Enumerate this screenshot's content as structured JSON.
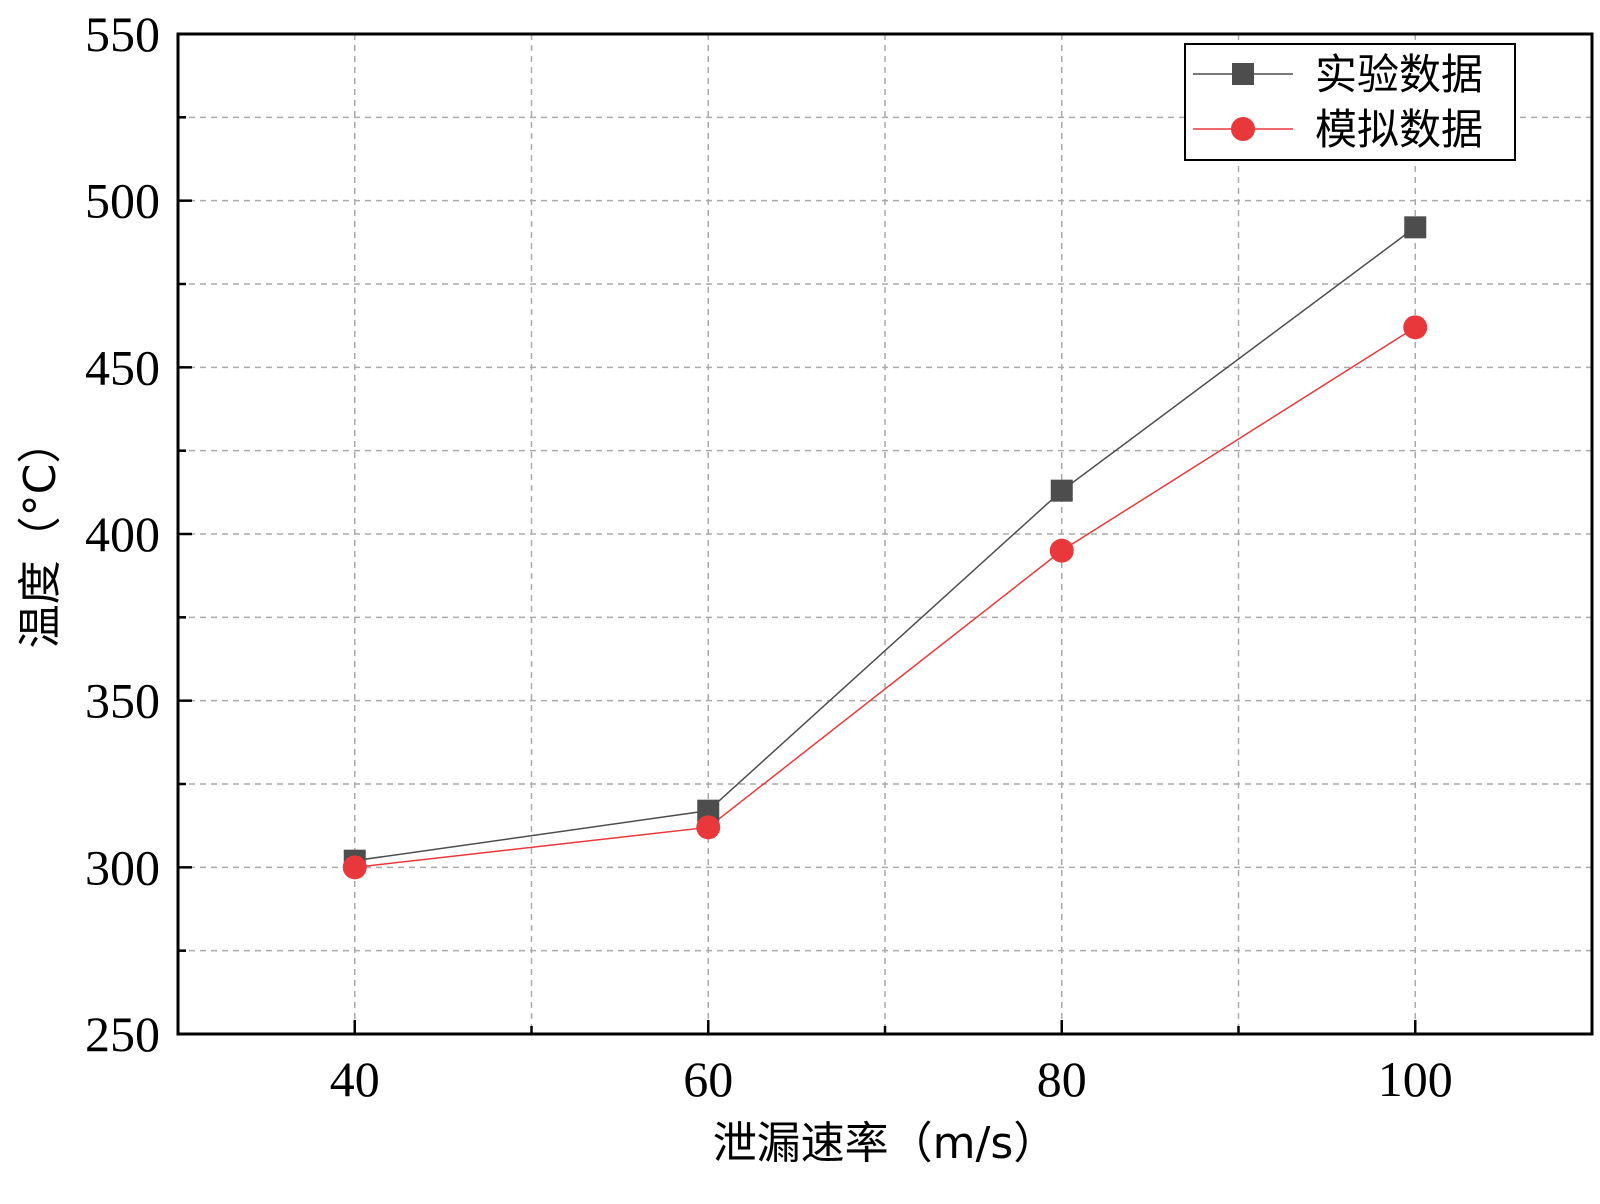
{
  "chart_data": {
    "type": "line",
    "x": [
      40,
      60,
      80,
      100
    ],
    "series": [
      {
        "name": "实验数据",
        "values": [
          302,
          317,
          413,
          492
        ],
        "color": "#4d4d4d",
        "marker": "square"
      },
      {
        "name": "模拟数据",
        "values": [
          300,
          312,
          395,
          462
        ],
        "color": "#e8383b",
        "marker": "circle"
      }
    ],
    "xlabel": "泄漏速率（m/s）",
    "ylabel": "温度（°C）",
    "xlim": [
      30,
      110
    ],
    "ylim": [
      250,
      550
    ],
    "xticks": [
      "40",
      "60",
      "80",
      "100"
    ],
    "yticks": [
      "250",
      "300",
      "350",
      "400",
      "450",
      "500",
      "550"
    ],
    "grid": true,
    "legend_position": "top-right"
  }
}
